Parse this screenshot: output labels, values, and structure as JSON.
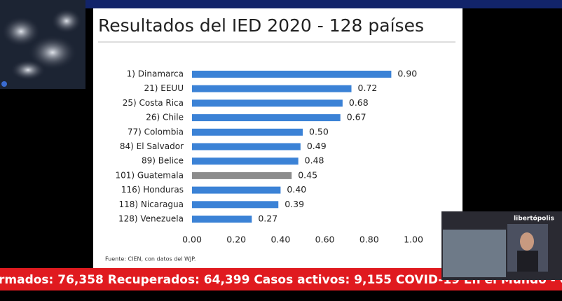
{
  "chart_data": {
    "type": "barh",
    "title": "Resultados del IED 2020 - 128 países",
    "source": "Fuente: CIEN, con datos del WJP.",
    "categories": [
      "1) Dinamarca",
      "21) EEUU",
      "25) Costa Rica",
      "26) Chile",
      "77) Colombia",
      "84) El Salvador",
      "89) Belice",
      "101) Guatemala",
      "116) Honduras",
      "118) Nicaragua",
      "128) Venezuela"
    ],
    "values": [
      0.9,
      0.72,
      0.68,
      0.67,
      0.5,
      0.49,
      0.48,
      0.45,
      0.4,
      0.39,
      0.27
    ],
    "value_labels": [
      "0.90",
      "0.72",
      "0.68",
      "0.67",
      "0.50",
      "0.49",
      "0.48",
      "0.45",
      "0.40",
      "0.39",
      "0.27"
    ],
    "colors": [
      "#3b82d6",
      "#3b82d6",
      "#3b82d6",
      "#3b82d6",
      "#3b82d6",
      "#3b82d6",
      "#3b82d6",
      "#8c8c8c",
      "#3b82d6",
      "#3b82d6",
      "#3b82d6"
    ],
    "xlim": [
      0,
      1
    ],
    "xticks": [
      {
        "value": 0,
        "label": "0.00"
      },
      {
        "value": 0.2,
        "label": "0.20"
      },
      {
        "value": 0.4,
        "label": "0.40"
      },
      {
        "value": 0.6,
        "label": "0.60"
      },
      {
        "value": 0.8,
        "label": "0.80"
      },
      {
        "value": 1,
        "label": "1.00"
      }
    ],
    "grid": false
  },
  "ticker": "rmados: 76,358 Recuperados: 64,399 Casos activos: 9,155 COVID-19 En el Mundo - Co",
  "inset": {
    "logo": "libertópolis"
  }
}
